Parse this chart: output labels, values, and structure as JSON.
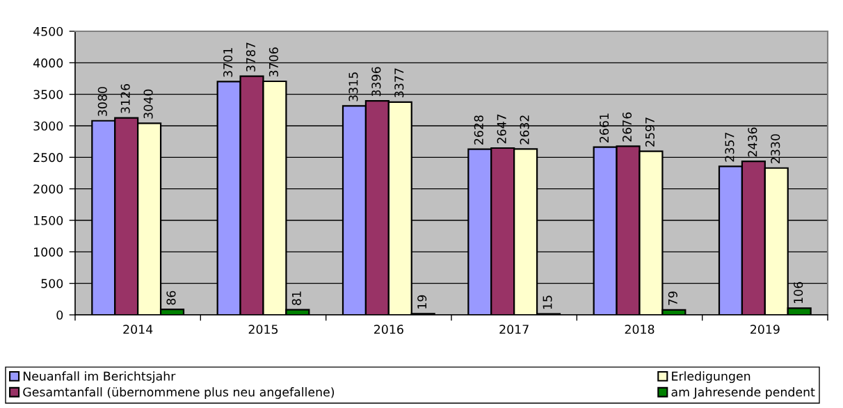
{
  "chart_data": {
    "type": "bar",
    "categories": [
      "2014",
      "2015",
      "2016",
      "2017",
      "2018",
      "2019"
    ],
    "series": [
      {
        "name": "Neuanfall im Berichtsjahr",
        "color": "#9999ff",
        "values": [
          3080,
          3701,
          3315,
          2628,
          2661,
          2357
        ]
      },
      {
        "name": "Gesamtanfall (übernommene plus neu angefallene)",
        "color": "#993366",
        "values": [
          3126,
          3787,
          3396,
          2647,
          2676,
          2436
        ]
      },
      {
        "name": "Erledigungen",
        "color": "#ffffcc",
        "values": [
          3040,
          3706,
          3377,
          2632,
          2597,
          2330
        ]
      },
      {
        "name": "am Jahresende pendent",
        "color": "#008000",
        "values": [
          86,
          81,
          19,
          15,
          79,
          106
        ]
      }
    ],
    "ylim": [
      0,
      4500
    ],
    "yticks": [
      0,
      500,
      1000,
      1500,
      2000,
      2500,
      3000,
      3500,
      4000,
      4500
    ],
    "grid": "y",
    "legend": "bottom",
    "data_labels": true
  }
}
